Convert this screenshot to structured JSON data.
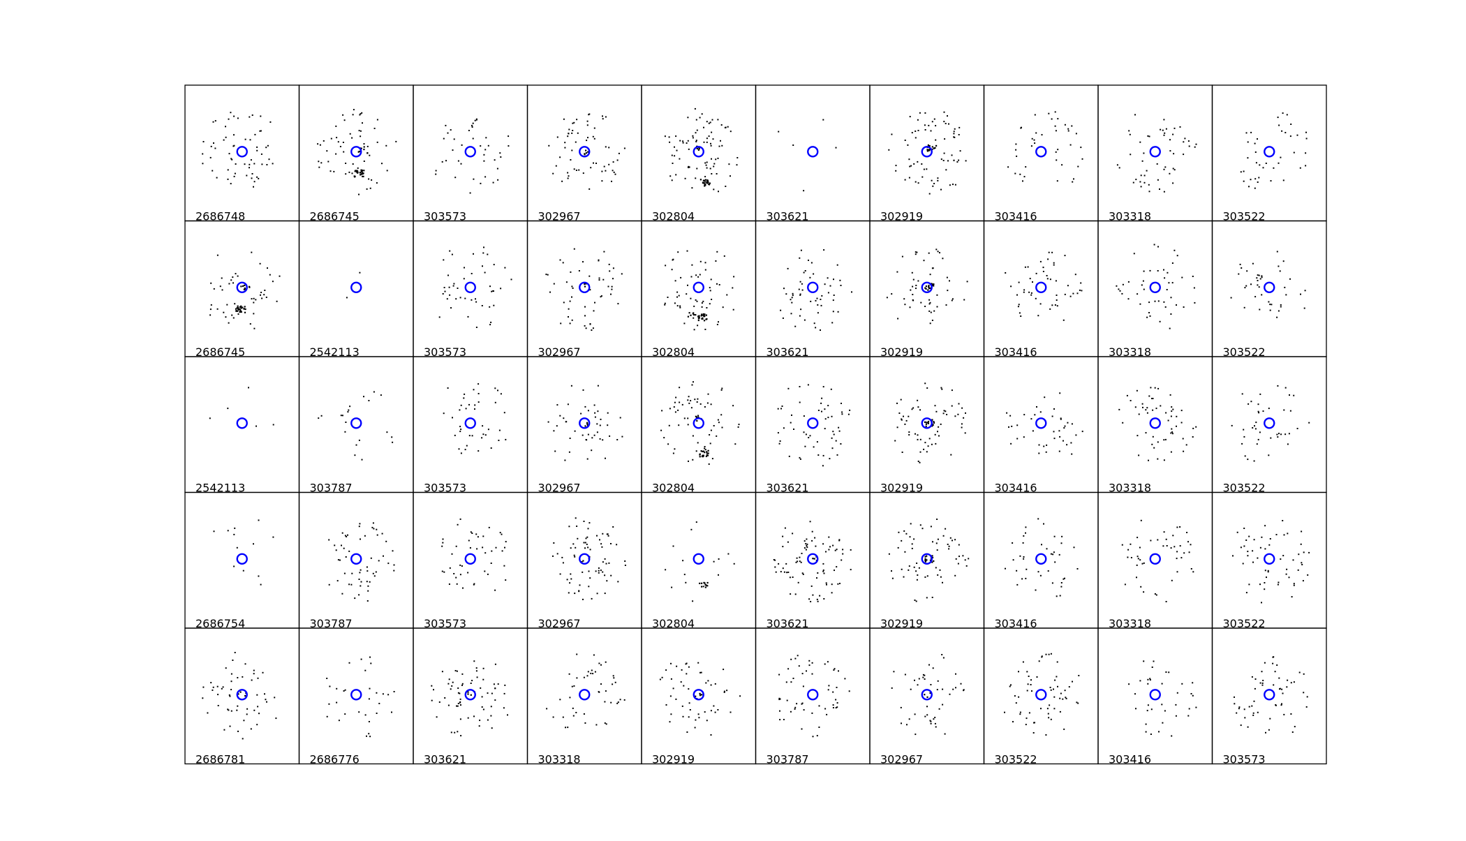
{
  "chart_data": {
    "type": "scatter",
    "layout": {
      "rows": 5,
      "cols": 10
    },
    "colors": {
      "points": "#000000",
      "center_marker": "#0000ff",
      "frame": "#000000"
    },
    "center_marker": {
      "shape": "open-circle",
      "x": 0,
      "y": 0
    },
    "panels": [
      {
        "label": "2686748",
        "clumps": []
      },
      {
        "label": "2686745",
        "clumps": [
          {
            "x": 0.05,
            "y": -0.5,
            "n": 25
          },
          {
            "x": 0.15,
            "y": 0.05,
            "n": 8
          }
        ]
      },
      {
        "label": "303573",
        "clumps": []
      },
      {
        "label": "302967",
        "clumps": [
          {
            "x": 0.03,
            "y": 0.02,
            "n": 5
          }
        ]
      },
      {
        "label": "302804",
        "clumps": [
          {
            "x": 0.15,
            "y": -0.72,
            "n": 25
          },
          {
            "x": 0.0,
            "y": 0.1,
            "n": 6
          }
        ]
      },
      {
        "label": "303621",
        "clumps": []
      },
      {
        "label": "302919",
        "clumps": [
          {
            "x": 0.1,
            "y": 0.1,
            "n": 18
          }
        ]
      },
      {
        "label": "303416",
        "clumps": []
      },
      {
        "label": "303318",
        "clumps": []
      },
      {
        "label": "303522",
        "clumps": []
      },
      {
        "label": "2686745",
        "clumps": [
          {
            "x": -0.05,
            "y": -0.5,
            "n": 25
          },
          {
            "x": 0.05,
            "y": 0.02,
            "n": 8
          }
        ]
      },
      {
        "label": "2542113",
        "clumps": []
      },
      {
        "label": "303573",
        "clumps": []
      },
      {
        "label": "302967",
        "clumps": [
          {
            "x": 0.03,
            "y": 0.03,
            "n": 5
          }
        ]
      },
      {
        "label": "302804",
        "clumps": [
          {
            "x": 0.08,
            "y": -0.7,
            "n": 22
          },
          {
            "x": -0.2,
            "y": -0.65,
            "n": 6
          }
        ]
      },
      {
        "label": "303621",
        "clumps": []
      },
      {
        "label": "302919",
        "clumps": [
          {
            "x": 0.05,
            "y": 0.03,
            "n": 15
          }
        ]
      },
      {
        "label": "303416",
        "clumps": []
      },
      {
        "label": "303318",
        "clumps": []
      },
      {
        "label": "303522",
        "clumps": []
      },
      {
        "label": "2542113",
        "clumps": []
      },
      {
        "label": "303787",
        "clumps": []
      },
      {
        "label": "303573",
        "clumps": []
      },
      {
        "label": "302967",
        "clumps": [
          {
            "x": 0.02,
            "y": 0.02,
            "n": 4
          }
        ]
      },
      {
        "label": "302804",
        "clumps": [
          {
            "x": 0.1,
            "y": -0.7,
            "n": 20
          },
          {
            "x": 0.0,
            "y": 0.12,
            "n": 6
          }
        ]
      },
      {
        "label": "303621",
        "clumps": []
      },
      {
        "label": "302919",
        "clumps": [
          {
            "x": 0.05,
            "y": 0.02,
            "n": 15
          }
        ]
      },
      {
        "label": "303416",
        "clumps": []
      },
      {
        "label": "303318",
        "clumps": []
      },
      {
        "label": "303522",
        "clumps": []
      },
      {
        "label": "2686754",
        "clumps": []
      },
      {
        "label": "303787",
        "clumps": []
      },
      {
        "label": "303573",
        "clumps": []
      },
      {
        "label": "302967",
        "clumps": [
          {
            "x": 0.03,
            "y": 0.02,
            "n": 4
          }
        ]
      },
      {
        "label": "302804",
        "clumps": [
          {
            "x": 0.1,
            "y": -0.6,
            "n": 10
          }
        ]
      },
      {
        "label": "303621",
        "clumps": [
          {
            "x": 0.03,
            "y": 0.02,
            "n": 4
          }
        ]
      },
      {
        "label": "302919",
        "clumps": [
          {
            "x": 0.03,
            "y": 0.02,
            "n": 14
          }
        ]
      },
      {
        "label": "303416",
        "clumps": []
      },
      {
        "label": "303318",
        "clumps": []
      },
      {
        "label": "303522",
        "clumps": []
      },
      {
        "label": "2686781",
        "clumps": [
          {
            "x": 0.0,
            "y": 0.0,
            "n": 5
          }
        ]
      },
      {
        "label": "2686776",
        "clumps": []
      },
      {
        "label": "303621",
        "clumps": [
          {
            "x": 0.0,
            "y": 0.0,
            "n": 4
          }
        ]
      },
      {
        "label": "303318",
        "clumps": []
      },
      {
        "label": "302919",
        "clumps": [
          {
            "x": 0.0,
            "y": 0.0,
            "n": 5
          }
        ]
      },
      {
        "label": "303787",
        "clumps": []
      },
      {
        "label": "302967",
        "clumps": [
          {
            "x": 0.0,
            "y": 0.0,
            "n": 3
          }
        ]
      },
      {
        "label": "303522",
        "clumps": []
      },
      {
        "label": "303416",
        "clumps": []
      },
      {
        "label": "303573",
        "clumps": []
      }
    ],
    "scatter_counts": [
      60,
      55,
      40,
      60,
      80,
      5,
      70,
      40,
      50,
      40,
      45,
      2,
      45,
      50,
      60,
      55,
      50,
      50,
      45,
      40,
      5,
      20,
      40,
      45,
      60,
      55,
      60,
      40,
      55,
      40,
      12,
      55,
      45,
      70,
      15,
      80,
      60,
      40,
      45,
      55,
      50,
      30,
      65,
      45,
      50,
      55,
      45,
      60,
      35,
      55
    ]
  }
}
